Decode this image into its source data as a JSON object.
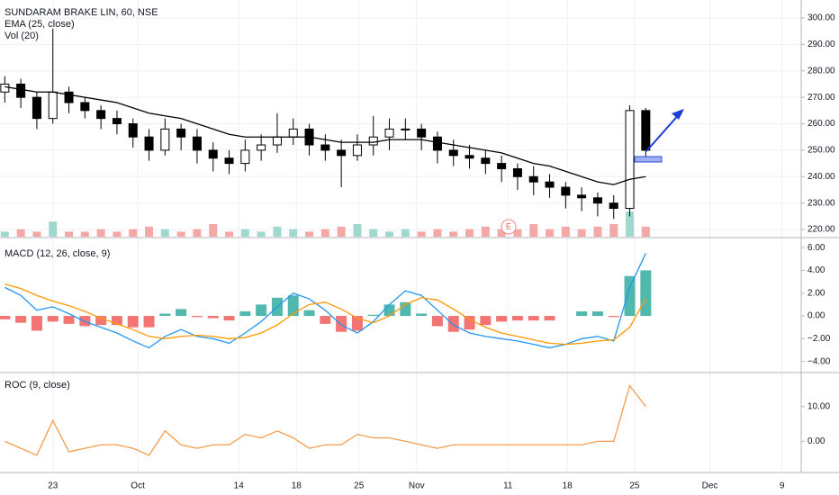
{
  "chart_data": [
    {
      "type": "candlestick",
      "title": "SUNDARAM BRAKE LIN, 60, NSE",
      "x": [
        0,
        1,
        2,
        3,
        4,
        5,
        6,
        7,
        8,
        9,
        10,
        11,
        12,
        13,
        14,
        15,
        16,
        17,
        18,
        19,
        20,
        21,
        22,
        23,
        24,
        25,
        26,
        27,
        28,
        29,
        30,
        31,
        32,
        33,
        34,
        35,
        36,
        37,
        38,
        39,
        40
      ],
      "open": [
        272,
        275,
        270,
        262,
        272,
        268,
        265,
        262,
        260,
        255,
        250,
        258,
        255,
        250,
        247,
        245,
        250,
        252,
        255,
        258,
        252,
        250,
        248,
        252,
        255,
        258,
        258,
        255,
        250,
        248,
        247,
        245,
        243,
        240,
        238,
        236,
        233,
        232,
        230,
        228,
        265
      ],
      "high": [
        278,
        277,
        272,
        296,
        274,
        270,
        267,
        265,
        262,
        258,
        262,
        260,
        258,
        253,
        250,
        254,
        256,
        264,
        262,
        260,
        256,
        254,
        256,
        263,
        262,
        262,
        260,
        257,
        254,
        252,
        250,
        248,
        245,
        244,
        241,
        238,
        236,
        234,
        233,
        267,
        266
      ],
      "low": [
        268,
        266,
        258,
        260,
        264,
        262,
        258,
        256,
        251,
        246,
        248,
        250,
        245,
        242,
        241,
        242,
        246,
        249,
        252,
        248,
        246,
        236,
        246,
        248,
        250,
        254,
        250,
        245,
        244,
        243,
        241,
        238,
        235,
        233,
        232,
        228,
        227,
        225,
        224,
        225,
        246
      ],
      "close": [
        275,
        270,
        262,
        272,
        268,
        265,
        262,
        260,
        255,
        250,
        258,
        255,
        250,
        247,
        245,
        250,
        252,
        255,
        258,
        252,
        250,
        248,
        252,
        255,
        258,
        258,
        255,
        250,
        248,
        247,
        245,
        243,
        240,
        238,
        236,
        233,
        232,
        230,
        228,
        265,
        250
      ],
      "up_color": "#ffffff",
      "down_color": "#000000",
      "series": [
        {
          "name": "EMA (25, close)",
          "color": "#000000",
          "values": [
            274,
            273,
            272,
            272,
            271,
            270,
            269,
            268,
            266,
            264,
            263,
            262,
            260,
            258,
            256,
            255,
            255,
            255,
            255,
            255,
            254,
            253,
            253,
            253,
            254,
            254,
            254,
            253,
            252,
            251,
            250,
            249,
            247,
            245,
            244,
            242,
            240,
            238,
            237,
            239,
            240
          ]
        }
      ],
      "volume": {
        "name": "Vol (20)",
        "up_color": "#9fd8cf",
        "down_color": "#f4a8a6",
        "values": [
          2,
          3,
          2,
          6,
          2,
          2,
          3,
          2,
          3,
          4,
          3,
          2,
          3,
          5,
          2,
          3,
          2,
          4,
          3,
          2,
          3,
          4,
          5,
          3,
          2,
          3,
          2,
          3,
          2,
          3,
          4,
          3,
          3,
          5,
          3,
          4,
          3,
          4,
          5,
          10,
          4
        ]
      },
      "annotation": "E",
      "xlim": [
        -0.3,
        49.7
      ],
      "ylim": [
        217.3,
        306.8
      ],
      "yticks": [
        {
          "value": 220,
          "label": "220.00"
        },
        {
          "value": 230,
          "label": "230.00"
        },
        {
          "value": 240,
          "label": "240.00"
        },
        {
          "value": 250,
          "label": "250.00"
        },
        {
          "value": 260,
          "label": "260.00"
        },
        {
          "value": 270,
          "label": "270.00"
        },
        {
          "value": 280,
          "label": "280.00"
        },
        {
          "value": 290,
          "label": "290.00"
        },
        {
          "value": 300,
          "label": "300.00"
        }
      ]
    },
    {
      "type": "macd",
      "title": "MACD (12, 26, close, 9)",
      "series": [
        {
          "color": "#2196f3",
          "values": [
            2.5,
            1.8,
            0.5,
            0.8,
            0.2,
            -0.5,
            -1.0,
            -1.5,
            -2.2,
            -2.8,
            -1.8,
            -1.2,
            -1.8,
            -2.0,
            -2.4,
            -1.5,
            -0.5,
            0.8,
            2.0,
            1.5,
            0.5,
            -0.8,
            -1.5,
            -0.5,
            1.0,
            2.2,
            1.8,
            0.5,
            -0.8,
            -1.5,
            -1.8,
            -2.0,
            -2.2,
            -2.5,
            -2.8,
            -2.5,
            -2.0,
            -1.8,
            -2.2,
            2.5,
            5.5
          ]
        },
        {
          "color": "#ff9800",
          "values": [
            2.8,
            2.4,
            1.8,
            1.3,
            0.9,
            0.4,
            -0.2,
            -0.7,
            -1.2,
            -1.8,
            -2.0,
            -1.8,
            -1.7,
            -1.8,
            -2.0,
            -1.9,
            -1.5,
            -0.8,
            0.2,
            1.0,
            1.2,
            0.6,
            -0.2,
            -0.6,
            0.0,
            1.0,
            1.6,
            1.4,
            0.6,
            -0.3,
            -1.0,
            -1.5,
            -1.8,
            -2.1,
            -2.4,
            -2.5,
            -2.4,
            -2.2,
            -2.1,
            -1.0,
            1.5
          ]
        }
      ],
      "histogram": {
        "up_color": "#26a69a",
        "down_color": "#ef5350",
        "values": [
          -0.3,
          -0.6,
          -1.3,
          -0.5,
          -0.7,
          -0.9,
          -0.8,
          -0.8,
          -1.0,
          -1.0,
          0.2,
          0.6,
          -0.1,
          -0.2,
          -0.4,
          0.4,
          1.0,
          1.6,
          1.8,
          0.5,
          -0.7,
          -1.4,
          -1.3,
          0.1,
          1.0,
          1.2,
          0.2,
          -0.9,
          -1.4,
          -1.2,
          -0.8,
          -0.5,
          -0.4,
          -0.4,
          -0.4,
          0.0,
          0.4,
          0.4,
          -0.1,
          3.5,
          4.0
        ]
      },
      "ylim": [
        -4.9,
        6.8
      ],
      "yticks": [
        {
          "value": -4,
          "label": "−4.00"
        },
        {
          "value": -2,
          "label": "−2.00"
        },
        {
          "value": 0,
          "label": "0.00"
        },
        {
          "value": 2,
          "label": "2.00"
        },
        {
          "value": 4,
          "label": "4.00"
        },
        {
          "value": 6,
          "label": "6.00"
        }
      ]
    },
    {
      "type": "line",
      "title": "ROC (9, close)",
      "series": [
        {
          "color": "#f39c4a",
          "values": [
            0,
            -2,
            -4,
            6,
            -3,
            -2,
            -1,
            -1,
            -2,
            -4,
            3,
            -1,
            -2,
            -1,
            -1,
            2,
            1,
            3,
            1,
            -2,
            -1,
            -1,
            2,
            1,
            1,
            0,
            -1,
            -2,
            -1,
            -1,
            -1,
            -1,
            -1,
            -1,
            -1,
            -1,
            -1,
            0,
            0,
            16,
            10
          ]
        }
      ],
      "ylim": [
        -8.7,
        19.5
      ],
      "yticks": [
        {
          "value": 0,
          "label": "0.00"
        },
        {
          "value": 10,
          "label": "10.00"
        }
      ],
      "xticks": [
        {
          "value": 3,
          "label": "23"
        },
        {
          "value": 8.3,
          "label": "Oct"
        },
        {
          "value": 14.6,
          "label": "14"
        },
        {
          "value": 18.2,
          "label": "18"
        },
        {
          "value": 22.1,
          "label": "25"
        },
        {
          "value": 25.7,
          "label": "Nov"
        },
        {
          "value": 31.4,
          "label": "11"
        },
        {
          "value": 35.1,
          "label": "18"
        },
        {
          "value": 39.3,
          "label": "25"
        },
        {
          "value": 44,
          "label": "Dec"
        },
        {
          "value": 48.5,
          "label": "9"
        }
      ]
    }
  ]
}
